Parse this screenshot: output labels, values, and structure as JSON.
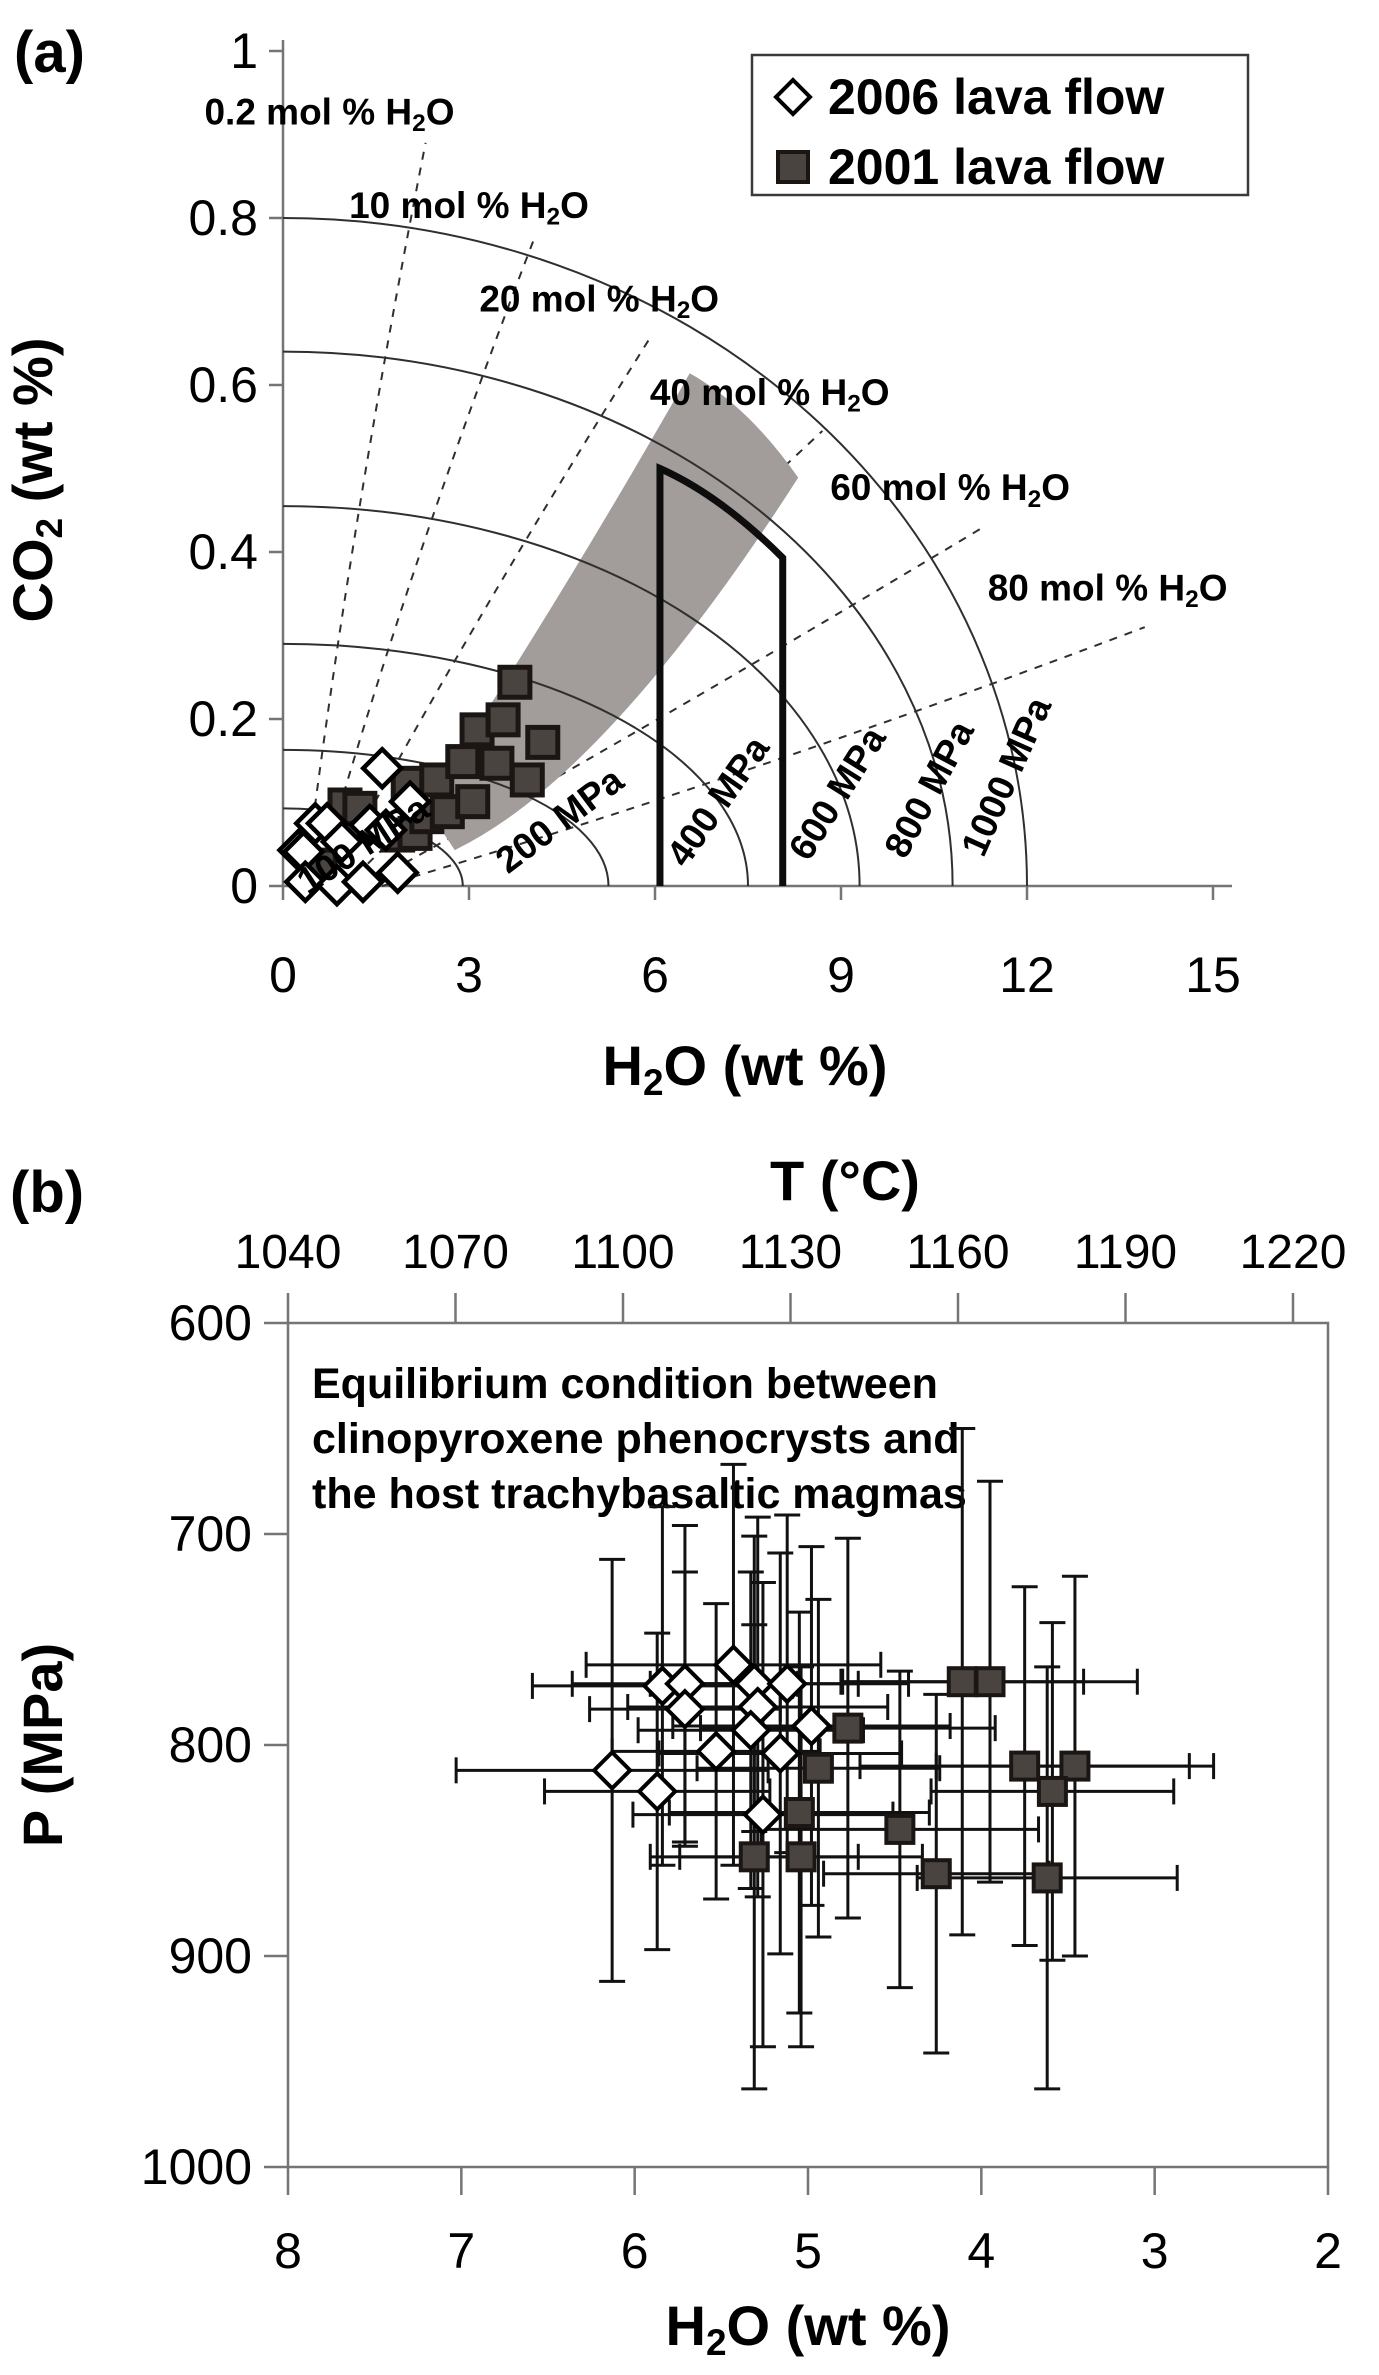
{
  "figure": {
    "description": "Two-panel volcanology figure: (a) CO2 vs H2O solubility isobar diagram with melt inclusion data; (b) P vs H2O / T clinopyroxene equilibrium plot with error bars"
  },
  "colors": {
    "band": "#a29c9b",
    "marker_2001_fill": "#4a4441",
    "marker_2001_stroke": "#1b1613",
    "marker_2006_fill": "#ffffff",
    "marker_2006_stroke": "#000000",
    "axis": "#757575",
    "line": "#2f2f2f",
    "text": "#000000"
  },
  "chart_data": [
    {
      "panel_label": "(a)",
      "type": "scatter",
      "xlabel": "H₂O (wt %)",
      "ylabel": "CO₂ (wt %)",
      "xlim": [
        0,
        15.3
      ],
      "ylim": [
        0,
        1.01
      ],
      "x_ticks": [
        "0",
        "3",
        "6",
        "9",
        "12",
        "15"
      ],
      "y_ticks": [
        "0",
        "0.2",
        "0.4",
        "0.6",
        "0.8",
        "1"
      ],
      "legend": {
        "items": [
          {
            "marker": "open-diamond",
            "label": "2006 lava flow"
          },
          {
            "marker": "filled-square",
            "label": "2001 lava flow"
          }
        ]
      },
      "isobars": [
        {
          "label": "100 MPa",
          "P_MPa": 100,
          "h2o_intercept": 2.9,
          "co2_intercept": 0.093,
          "label_pos": [
            1.4,
            0.037
          ],
          "label_angle": -33
        },
        {
          "label": "200 MPa",
          "P_MPa": 200,
          "h2o_intercept": 5.25,
          "co2_intercept": 0.163,
          "label_pos": [
            4.58,
            0.067
          ],
          "label_angle": -37
        },
        {
          "label": "400 MPa",
          "P_MPa": 400,
          "h2o_intercept": 7.5,
          "co2_intercept": 0.29,
          "label_pos": [
            7.18,
            0.093
          ],
          "label_angle": -55
        },
        {
          "label": "600 MPa",
          "P_MPa": 600,
          "h2o_intercept": 9.3,
          "co2_intercept": 0.455,
          "label_pos": [
            9.11,
            0.103
          ],
          "label_angle": -58
        },
        {
          "label": "800 MPa",
          "P_MPa": 800,
          "h2o_intercept": 10.8,
          "co2_intercept": 0.64,
          "label_pos": [
            10.6,
            0.109
          ],
          "label_angle": -62
        },
        {
          "label": "1000 MPa",
          "P_MPa": 1000,
          "h2o_intercept": 12.0,
          "co2_intercept": 0.8,
          "label_pos": [
            11.85,
            0.125
          ],
          "label_angle": -66
        }
      ],
      "isopleths": [
        {
          "label": "0.2 mol % H₂O",
          "start": [
            0.35,
            0
          ],
          "ctrl": [
            1.05,
            0.42
          ],
          "end": [
            2.3,
            0.89
          ],
          "label_pos": [
            0.75,
            0.912
          ]
        },
        {
          "label": "10 mol % H₂O",
          "start": [
            0.55,
            0
          ],
          "ctrl": [
            1.9,
            0.36
          ],
          "end": [
            4.05,
            0.775
          ],
          "label_pos": [
            3.0,
            0.8
          ]
        },
        {
          "label": "20 mol % H₂O",
          "start": [
            0.75,
            0
          ],
          "ctrl": [
            2.9,
            0.3
          ],
          "end": [
            5.95,
            0.66
          ],
          "label_pos": [
            5.1,
            0.688
          ]
        },
        {
          "label": "40 mol % H₂O",
          "start": [
            1.0,
            0
          ],
          "ctrl": [
            4.3,
            0.24
          ],
          "end": [
            8.7,
            0.545
          ],
          "label_pos": [
            7.85,
            0.576
          ]
        },
        {
          "label": "60 mol % H₂O",
          "start": [
            1.3,
            0
          ],
          "ctrl": [
            5.8,
            0.185
          ],
          "end": [
            11.3,
            0.43
          ],
          "label_pos": [
            10.76,
            0.462
          ]
        },
        {
          "label": "80 mol % H₂O",
          "start": [
            1.6,
            0
          ],
          "ctrl": [
            7.3,
            0.125
          ],
          "end": [
            13.9,
            0.31
          ],
          "label_pos": [
            13.3,
            0.342
          ]
        }
      ],
      "shaded_band": {
        "outline": [
          [
            2.29,
            0.097
          ],
          [
            6.56,
            0.614
          ],
          [
            8.31,
            0.489
          ],
          [
            2.77,
            0.043
          ]
        ],
        "ctrl": [
          [
            4.3,
            0.32
          ],
          [
            7.5,
            0.575
          ],
          [
            5.2,
            0.13
          ]
        ]
      },
      "bold_outline": {
        "left_x": 6.08,
        "left_top": 0.5,
        "right_x": 8.06,
        "right_top": 0.393,
        "ctrl": [
          7.05,
          0.468
        ]
      },
      "series": [
        {
          "name": "2006 lava flow",
          "marker": "open-diamond",
          "points": [
            [
              0.25,
              0.043
            ],
            [
              0.33,
              0.041
            ],
            [
              0.36,
              0.005
            ],
            [
              0.52,
              0.075
            ],
            [
              0.71,
              0.075
            ],
            [
              0.87,
              0.001
            ],
            [
              0.95,
              0.053
            ],
            [
              1.29,
              0.005
            ],
            [
              1.4,
              0.073
            ],
            [
              1.6,
              0.141
            ],
            [
              1.66,
              0.067
            ],
            [
              1.85,
              0.016
            ],
            [
              2.05,
              0.101
            ]
          ]
        },
        {
          "name": "2001 lava flow",
          "marker": "filled-square",
          "points": [
            [
              0.6,
              0.025
            ],
            [
              1.0,
              0.097
            ],
            [
              1.24,
              0.093
            ],
            [
              1.85,
              0.061
            ],
            [
              2.02,
              0.123
            ],
            [
              2.13,
              0.063
            ],
            [
              2.32,
              0.083
            ],
            [
              2.48,
              0.127
            ],
            [
              2.65,
              0.089
            ],
            [
              2.9,
              0.149
            ],
            [
              3.06,
              0.101
            ],
            [
              3.13,
              0.187
            ],
            [
              3.45,
              0.147
            ],
            [
              3.55,
              0.199
            ],
            [
              3.74,
              0.244
            ],
            [
              3.94,
              0.127
            ],
            [
              4.19,
              0.172
            ]
          ]
        }
      ]
    },
    {
      "panel_label": "(b)",
      "type": "scatter-errorbar",
      "annotation_lines": [
        "Equilibrium condition between",
        "clinopyroxene phenocrysts and",
        "the host trachybasaltic magmas"
      ],
      "top_axis": {
        "title": "T (°C)",
        "ticks": [
          1040,
          1070,
          1100,
          1130,
          1160,
          1190,
          1220
        ],
        "range": [
          1040,
          1226
        ]
      },
      "left_axis": {
        "title": "P (MPa)",
        "ticks": [
          600,
          700,
          800,
          900,
          1000
        ],
        "range": [
          600,
          1000
        ],
        "inverted": true
      },
      "bottom_axis": {
        "title": "H₂O (wt %)",
        "ticks": [
          8,
          7,
          6,
          5,
          4,
          3,
          2
        ],
        "range": [
          8,
          2
        ],
        "inverted": true
      },
      "series": [
        {
          "name": "2006 lava flow",
          "marker": "open-diamond",
          "points_xy_err": [
            [
              5.84,
              772,
              0.75,
              85
            ],
            [
              5.71,
              771,
              0.65,
              75
            ],
            [
              5.43,
              762,
              0.85,
              95
            ],
            [
              5.31,
              771,
              0.6,
              70
            ],
            [
              5.12,
              771,
              0.7,
              80
            ],
            [
              5.71,
              783,
              0.55,
              65
            ],
            [
              5.29,
              782,
              0.75,
              90
            ],
            [
              5.33,
              793,
              0.65,
              75
            ],
            [
              4.98,
              791,
              0.8,
              85
            ],
            [
              5.53,
              803,
              0.6,
              70
            ],
            [
              5.16,
              804,
              0.7,
              95
            ],
            [
              6.13,
              812,
              0.9,
              100
            ],
            [
              5.87,
              822,
              0.65,
              75
            ],
            [
              5.26,
              833,
              0.75,
              110
            ]
          ]
        },
        {
          "name": "2001 lava flow",
          "marker": "filled-square",
          "points_xy_err": [
            [
              4.77,
              792,
              0.85,
              90
            ],
            [
              4.94,
              811,
              0.7,
              80
            ],
            [
              5.05,
              832,
              0.75,
              95
            ],
            [
              5.31,
              853,
              0.6,
              110
            ],
            [
              5.04,
              853,
              0.7,
              90
            ],
            [
              4.47,
              840,
              0.8,
              75
            ],
            [
              4.26,
              861,
              0.65,
              85
            ],
            [
              3.62,
              863,
              0.75,
              100
            ],
            [
              4.11,
              770,
              0.7,
              120
            ],
            [
              3.95,
              770,
              0.85,
              95
            ],
            [
              3.75,
              810,
              0.95,
              85
            ],
            [
              3.46,
              810,
              0.8,
              90
            ],
            [
              3.59,
              822,
              0.7,
              80
            ]
          ]
        }
      ]
    }
  ]
}
